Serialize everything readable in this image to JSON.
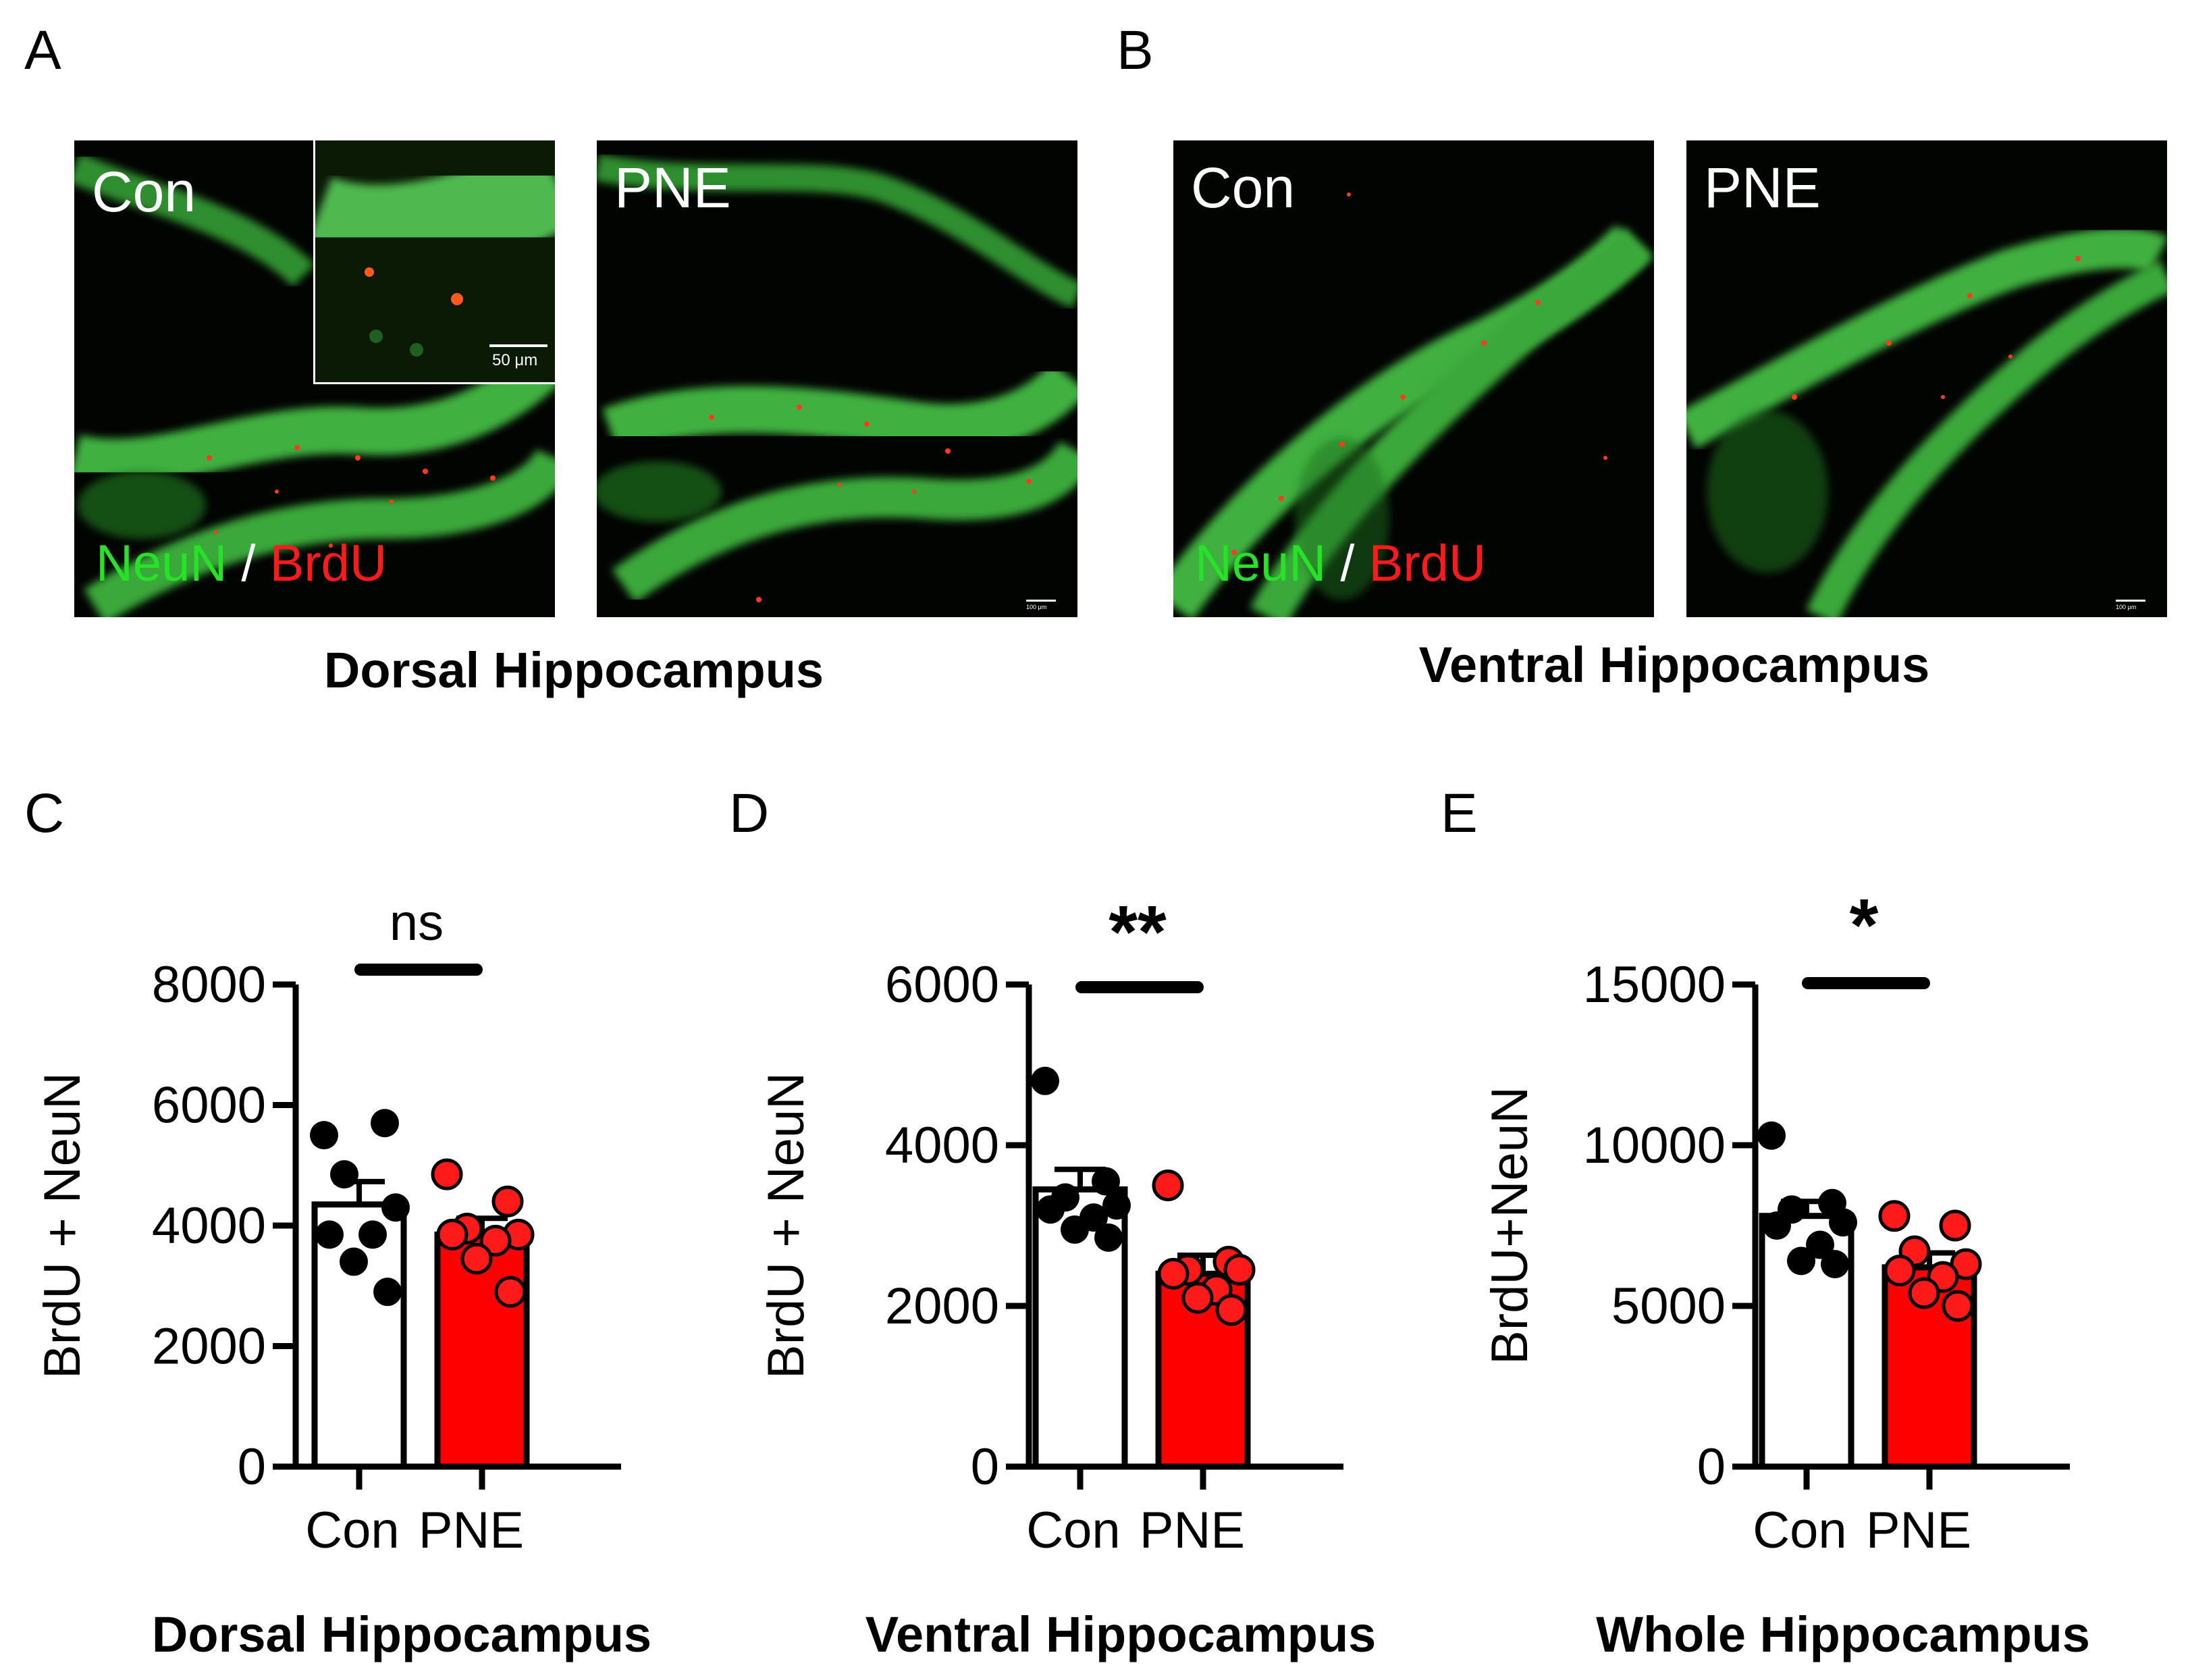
{
  "panels": {
    "A": "A",
    "B": "B",
    "C": "C",
    "D": "D",
    "E": "E"
  },
  "micrographs": {
    "dorsal_con_label": "Con",
    "dorsal_pne_label": "PNE",
    "ventral_con_label": "Con",
    "ventral_pne_label": "PNE",
    "stain_neun": "NeuN",
    "stain_sep": " / ",
    "stain_brdu": "BrdU",
    "inset_scale": "50 μm",
    "scale_small": "100 μm",
    "caption_dorsal": "Dorsal Hippocampus",
    "caption_ventral": "Ventral Hippocampus",
    "colors": {
      "neun": "#27e327",
      "brdu": "#ff1a1a"
    }
  },
  "chart_data": [
    {
      "type": "bar",
      "panel": "C",
      "title": "Dorsal Hippocampus",
      "ylabel": "BrdU + NeuN",
      "categories": [
        "Con",
        "PNE"
      ],
      "means": [
        4350,
        3850
      ],
      "sem": [
        380,
        270
      ],
      "points": [
        [
          5500,
          5700,
          4850,
          4300,
          3850,
          3850,
          3400,
          2900
        ],
        [
          4850,
          4400,
          3950,
          3850,
          3850,
          3750,
          3450,
          2900
        ]
      ],
      "ylim": [
        0,
        8000
      ],
      "yticks": [
        0,
        2000,
        4000,
        6000,
        8000
      ],
      "significance": "ns",
      "colors": [
        "#ffffff",
        "#ff0000"
      ]
    },
    {
      "type": "bar",
      "panel": "D",
      "title": "Ventral Hippocampus",
      "ylabel": "BrdU + NeuN",
      "categories": [
        "Con",
        "PNE"
      ],
      "means": [
        3450,
        2400
      ],
      "sem": [
        250,
        230
      ],
      "points": [
        [
          4800,
          3550,
          3350,
          3250,
          3200,
          3100,
          2950,
          2850
        ],
        [
          3500,
          2550,
          2450,
          2450,
          2400,
          2200,
          2100,
          1950
        ]
      ],
      "ylim": [
        0,
        6000
      ],
      "yticks": [
        0,
        2000,
        4000,
        6000
      ],
      "significance": "**",
      "colors": [
        "#ffffff",
        "#ff0000"
      ]
    },
    {
      "type": "bar",
      "panel": "E",
      "title": "Whole Hippocampus",
      "ylabel": "BrdU+NeuN",
      "categories": [
        "Con",
        "PNE"
      ],
      "means": [
        7800,
        6200
      ],
      "sem": [
        450,
        450
      ],
      "points": [
        [
          10300,
          8200,
          8000,
          7600,
          7500,
          6900,
          6400,
          6300
        ],
        [
          7800,
          7500,
          6700,
          6300,
          6100,
          5900,
          5400,
          5000
        ]
      ],
      "ylim": [
        0,
        15000
      ],
      "yticks": [
        0,
        5000,
        10000,
        15000
      ],
      "significance": "*",
      "colors": [
        "#ffffff",
        "#ff0000"
      ]
    }
  ]
}
